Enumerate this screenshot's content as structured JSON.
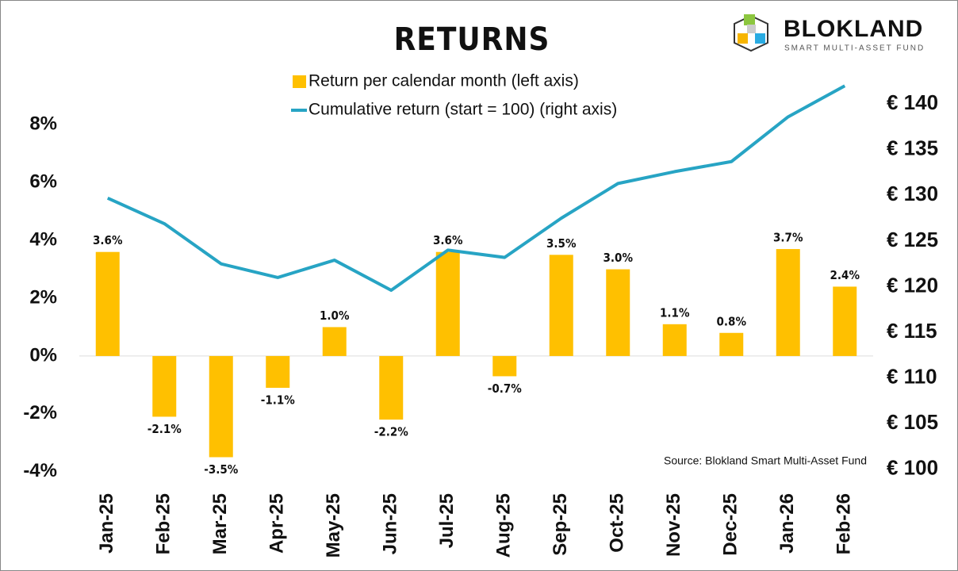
{
  "brand": {
    "name": "BLOKLAND",
    "tagline": "SMART MULTI-ASSET FUND"
  },
  "chart_data": {
    "type": "bar",
    "title": "RETURNS",
    "categories": [
      "Jan-25",
      "Feb-25",
      "Mar-25",
      "Apr-25",
      "May-25",
      "Jun-25",
      "Jul-25",
      "Aug-25",
      "Sep-25",
      "Oct-25",
      "Nov-25",
      "Dec-25",
      "Jan-26",
      "Feb-26"
    ],
    "series": [
      {
        "name": "Return per calendar month (left axis)",
        "type": "bar",
        "color": "#ffc000",
        "values": [
          3.6,
          -2.1,
          -3.5,
          -1.1,
          1.0,
          -2.2,
          3.6,
          -0.7,
          3.5,
          3.0,
          1.1,
          0.8,
          3.7,
          2.4
        ],
        "value_labels": [
          "3.6%",
          "-2.1%",
          "-3.5%",
          "-1.1%",
          "1.0%",
          "-2.2%",
          "3.6%",
          "-0.7%",
          "3.5%",
          "3.0%",
          "1.1%",
          "0.8%",
          "3.7%",
          "2.4%"
        ]
      },
      {
        "name": "Cumulative return (start = 100) (right axis)",
        "type": "line",
        "color": "#27a4c4",
        "axis": "y2",
        "values": [
          129.7,
          126.9,
          122.5,
          121.0,
          122.9,
          119.6,
          124.0,
          123.2,
          127.5,
          131.3,
          132.6,
          133.7,
          138.6,
          142.0
        ]
      }
    ],
    "ylim": [
      -4.2,
      9.6
    ],
    "yticks": [
      {
        "value": -4,
        "label": "-4%"
      },
      {
        "value": -2,
        "label": "-2%"
      },
      {
        "value": 0,
        "label": "0%"
      },
      {
        "value": 2,
        "label": "2%"
      },
      {
        "value": 4,
        "label": "4%"
      },
      {
        "value": 6,
        "label": "6%"
      },
      {
        "value": 8,
        "label": "8%"
      }
    ],
    "y2lim": [
      99.1,
      142.8
    ],
    "y2ticks": [
      {
        "value": 100,
        "label": "€ 100"
      },
      {
        "value": 105,
        "label": "€ 105"
      },
      {
        "value": 110,
        "label": "€ 110"
      },
      {
        "value": 115,
        "label": "€ 115"
      },
      {
        "value": 120,
        "label": "€ 120"
      },
      {
        "value": 125,
        "label": "€ 125"
      },
      {
        "value": 130,
        "label": "€ 130"
      },
      {
        "value": 135,
        "label": "€ 135"
      },
      {
        "value": 140,
        "label": "€ 140"
      }
    ],
    "legend": "top",
    "source": "Source: Blokland Smart Multi-Asset Fund"
  }
}
